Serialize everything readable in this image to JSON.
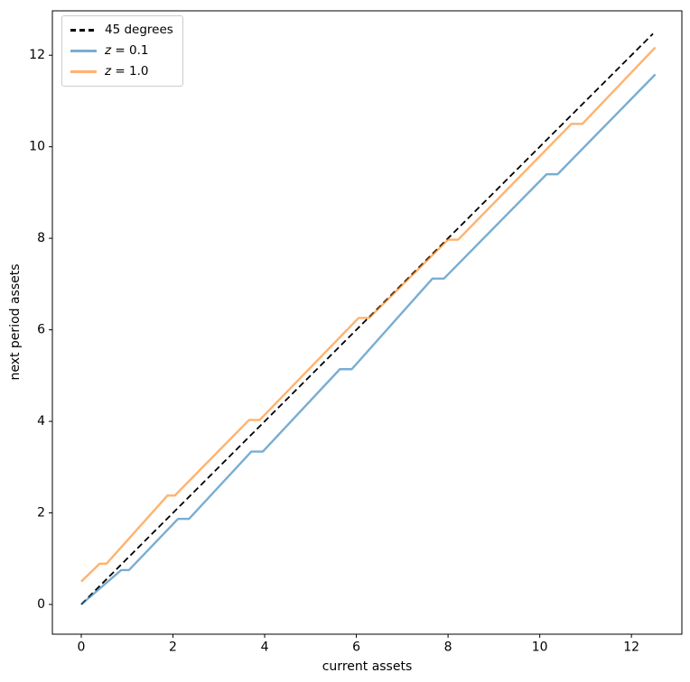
{
  "figure": {
    "background": "#ffffff"
  },
  "chart_data": {
    "type": "line",
    "title": "",
    "xlabel": "current assets",
    "ylabel": "next period assets",
    "xlim": [
      -0.63,
      13.1
    ],
    "ylim": [
      -0.65,
      12.97
    ],
    "xticks": [
      0,
      2,
      4,
      6,
      8,
      10,
      12
    ],
    "yticks": [
      0,
      2,
      4,
      6,
      8,
      10,
      12
    ],
    "grid": false,
    "legend_position": "upper left",
    "series": [
      {
        "name": "45 degrees",
        "color": "#000000",
        "alpha": 1.0,
        "dash": true,
        "width": 1.8,
        "x": [
          0,
          12.47
        ],
        "y": [
          0,
          12.47
        ]
      },
      {
        "name": "z = 0.1",
        "color": "#1f77b4",
        "alpha": 0.6,
        "dash": false,
        "width": 2.4,
        "x": [
          0,
          0.87,
          1.04,
          2.11,
          2.35,
          3.71,
          3.96,
          5.64,
          5.9,
          7.66,
          7.91,
          10.15,
          10.39,
          12.52
        ],
        "y": [
          0,
          0.75,
          0.75,
          1.87,
          1.87,
          3.34,
          3.34,
          5.14,
          5.14,
          7.12,
          7.12,
          9.4,
          9.4,
          11.58
        ]
      },
      {
        "name": "z = 1.0",
        "color": "#ff7f0e",
        "alpha": 0.6,
        "dash": false,
        "width": 2.4,
        "x": [
          0,
          0.4,
          0.55,
          1.88,
          2.04,
          3.66,
          3.89,
          6.05,
          6.28,
          8.0,
          8.22,
          10.69,
          10.93,
          12.52
        ],
        "y": [
          0.5,
          0.89,
          0.89,
          2.38,
          2.38,
          4.03,
          4.03,
          6.26,
          6.26,
          7.97,
          7.97,
          10.5,
          10.5,
          12.17
        ]
      }
    ]
  },
  "legend": {
    "items": [
      {
        "var": "",
        "rest": "45 degrees"
      },
      {
        "var": "z",
        "rest": " = 0.1"
      },
      {
        "var": "z",
        "rest": " = 1.0"
      }
    ]
  }
}
